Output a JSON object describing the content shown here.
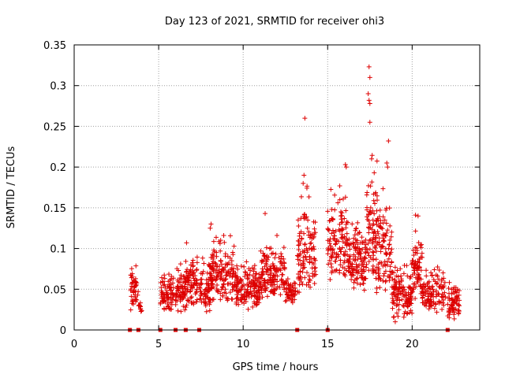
{
  "chart_data": {
    "type": "scatter",
    "title": "Day 123 of 2021, SRMTID for receiver ohi3",
    "xlabel": "GPS time / hours",
    "ylabel": "SRMTID / TECUs",
    "xlim": [
      0,
      24
    ],
    "ylim": [
      0,
      0.35
    ],
    "xticks": [
      0,
      5,
      10,
      15,
      20
    ],
    "xtick_labels": [
      "0",
      "5",
      "10",
      "15",
      "20"
    ],
    "yticks": [
      0,
      0.05,
      0.1,
      0.15,
      0.2,
      0.25,
      0.3,
      0.35
    ],
    "ytick_labels": [
      "0",
      "0.05",
      "0.1",
      "0.15",
      "0.2",
      "0.25",
      "0.3",
      "0.35"
    ],
    "grid": true,
    "marker": "+",
    "color": "#dd0000",
    "gap_markers_x": [
      3.3,
      3.8,
      5.1,
      6.0,
      6.6,
      7.4,
      13.2,
      15.0,
      22.1
    ],
    "clusters": [
      {
        "x0": 3.3,
        "x1": 3.8,
        "y": [
          0.02,
          0.09
        ],
        "n": 45
      },
      {
        "x0": 3.8,
        "x1": 4.0,
        "y": [
          0.02,
          0.04
        ],
        "n": 10
      },
      {
        "x0": 5.1,
        "x1": 5.9,
        "y": [
          0.02,
          0.08
        ],
        "n": 80
      },
      {
        "x0": 6.0,
        "x1": 6.6,
        "y": [
          0.02,
          0.09
        ],
        "n": 70
      },
      {
        "x0": 6.6,
        "x1": 7.3,
        "y": [
          0.02,
          0.11
        ],
        "n": 80
      },
      {
        "x0": 7.4,
        "x1": 8.2,
        "y": [
          0.02,
          0.1
        ],
        "n": 80
      },
      {
        "x0": 8.0,
        "x1": 9.5,
        "y": [
          0.03,
          0.13
        ],
        "n": 140
      },
      {
        "x0": 9.5,
        "x1": 11.0,
        "y": [
          0.02,
          0.09
        ],
        "n": 160
      },
      {
        "x0": 11.0,
        "x1": 12.5,
        "y": [
          0.03,
          0.12
        ],
        "n": 150
      },
      {
        "x0": 12.5,
        "x1": 13.1,
        "y": [
          0.03,
          0.07
        ],
        "n": 50
      },
      {
        "x0": 13.2,
        "x1": 14.3,
        "y": [
          0.03,
          0.19
        ],
        "n": 120
      },
      {
        "x0": 15.0,
        "x1": 16.2,
        "y": [
          0.05,
          0.2
        ],
        "n": 130
      },
      {
        "x0": 16.2,
        "x1": 17.3,
        "y": [
          0.04,
          0.15
        ],
        "n": 130
      },
      {
        "x0": 17.3,
        "x1": 18.0,
        "y": [
          0.04,
          0.24
        ],
        "n": 90
      },
      {
        "x0": 18.0,
        "x1": 18.8,
        "y": [
          0.03,
          0.2
        ],
        "n": 90
      },
      {
        "x0": 18.8,
        "x1": 20.0,
        "y": [
          0.01,
          0.09
        ],
        "n": 130
      },
      {
        "x0": 20.0,
        "x1": 20.6,
        "y": [
          0.03,
          0.14
        ],
        "n": 70
      },
      {
        "x0": 20.6,
        "x1": 22.0,
        "y": [
          0.02,
          0.09
        ],
        "n": 110
      },
      {
        "x0": 22.1,
        "x1": 22.8,
        "y": [
          0.01,
          0.07
        ],
        "n": 70
      }
    ],
    "highlight_points": [
      [
        13.65,
        0.26
      ],
      [
        17.45,
        0.323
      ],
      [
        17.5,
        0.31
      ],
      [
        17.4,
        0.29
      ],
      [
        17.45,
        0.282
      ],
      [
        17.5,
        0.278
      ],
      [
        17.5,
        0.255
      ],
      [
        18.6,
        0.232
      ],
      [
        13.6,
        0.19
      ],
      [
        13.55,
        0.18
      ],
      [
        16.05,
        0.203
      ],
      [
        16.1,
        0.2
      ],
      [
        18.5,
        0.205
      ],
      [
        18.55,
        0.2
      ],
      [
        11.3,
        0.143
      ],
      [
        20.2,
        0.141
      ],
      [
        20.35,
        0.14
      ],
      [
        8.1,
        0.13
      ],
      [
        8.05,
        0.125
      ],
      [
        6.65,
        0.107
      ],
      [
        12.0,
        0.116
      ],
      [
        17.55,
        0.15
      ],
      [
        17.6,
        0.21
      ],
      [
        19.0,
        0.01
      ]
    ]
  }
}
